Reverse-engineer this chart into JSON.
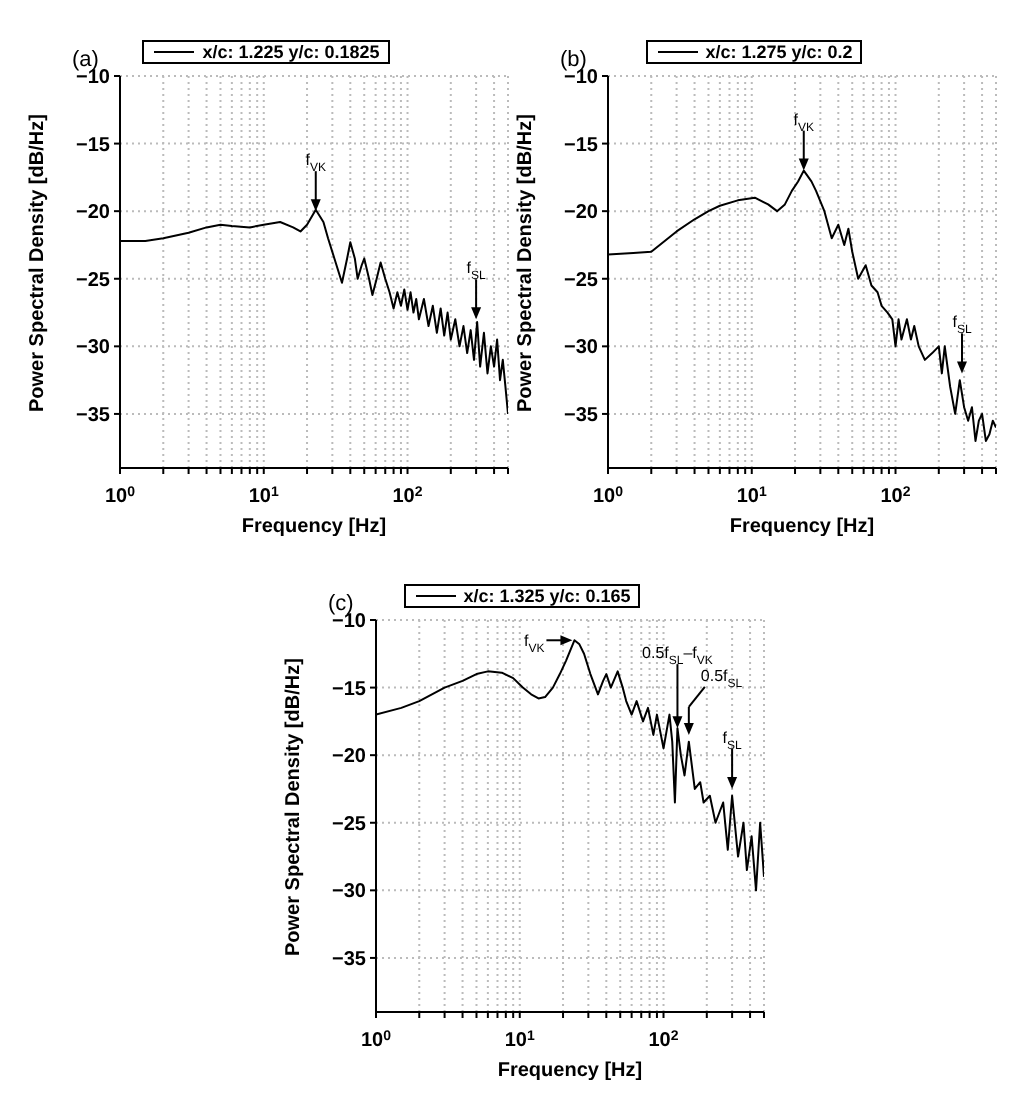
{
  "chart_data": [
    {
      "type": "line",
      "title": "(a)",
      "xlabel": "Frequency [Hz]",
      "ylabel": "Power Spectral Density [dB/Hz]",
      "log": "x",
      "grid": true,
      "legend": "top",
      "marker": "none",
      "line_style": "solid",
      "xlim": [
        1,
        500
      ],
      "ylim": [
        -39,
        -10
      ],
      "yticks": [
        -35,
        -30,
        -25,
        -20,
        -15,
        -10
      ],
      "xticks": [
        {
          "value": 1,
          "label": "10$^{0}$"
        },
        {
          "value": 2,
          "label": null
        },
        {
          "value": 3,
          "label": null
        },
        {
          "value": 4,
          "label": null
        },
        {
          "value": 5,
          "label": null
        },
        {
          "value": 6,
          "label": null
        },
        {
          "value": 7,
          "label": null
        },
        {
          "value": 8,
          "label": null
        },
        {
          "value": 9,
          "label": null
        },
        {
          "value": 10,
          "label": "10$^{1}$"
        },
        {
          "value": 20,
          "label": null
        },
        {
          "value": 30,
          "label": null
        },
        {
          "value": 40,
          "label": null
        },
        {
          "value": 50,
          "label": null
        },
        {
          "value": 60,
          "label": null
        },
        {
          "value": 70,
          "label": null
        },
        {
          "value": 80,
          "label": null
        },
        {
          "value": 90,
          "label": null
        },
        {
          "value": 100,
          "label": "10$^{2}$"
        },
        {
          "value": 200,
          "label": null
        },
        {
          "value": 300,
          "label": null
        },
        {
          "value": 400,
          "label": null
        },
        {
          "value": 500,
          "label": null
        }
      ],
      "series": [
        {
          "name": "x/c: 1.225 y/c: 0.1825",
          "color": "#000000",
          "x": [
            1,
            1.5,
            2,
            3,
            4,
            5,
            6,
            8,
            10,
            13,
            16,
            18,
            20,
            23,
            26,
            28,
            31,
            35,
            38,
            40,
            43,
            45,
            48,
            50,
            54,
            57,
            61,
            65,
            70,
            75,
            80,
            85,
            90,
            95,
            100,
            105,
            110,
            115,
            120,
            130,
            140,
            150,
            160,
            170,
            180,
            190,
            200,
            215,
            230,
            245,
            260,
            275,
            290,
            305,
            320,
            340,
            360,
            380,
            400,
            420,
            440,
            460,
            480,
            500
          ],
          "values": [
            -22.2,
            -22.2,
            -22,
            -21.6,
            -21.2,
            -21,
            -21.1,
            -21.2,
            -21,
            -20.8,
            -21.2,
            -21.5,
            -21,
            -19.9,
            -20.8,
            -22,
            -23.5,
            -25.3,
            -23.5,
            -22.3,
            -23.5,
            -25,
            -24,
            -23.5,
            -25,
            -26.2,
            -25,
            -23.8,
            -25,
            -26,
            -27.2,
            -26,
            -27,
            -25.8,
            -27.3,
            -26,
            -27.5,
            -26.5,
            -28,
            -26.5,
            -28.5,
            -27,
            -29,
            -27.2,
            -29.2,
            -27.5,
            -29.5,
            -28,
            -30,
            -28.5,
            -30.5,
            -28.8,
            -31,
            -28.2,
            -31.5,
            -29,
            -32,
            -30,
            -31.5,
            -29.5,
            -32.5,
            -31,
            -33,
            -35
          ]
        }
      ],
      "annotations": [
        {
          "text": "f$_{VK}$",
          "x": 23,
          "y": -20
        },
        {
          "text": "f$_{SL}$",
          "x": 300,
          "y": -28
        }
      ]
    },
    {
      "type": "line",
      "title": "(b)",
      "xlabel": "Frequency [Hz]",
      "ylabel": "Power Spectral Density [dB/Hz]",
      "log": "x",
      "grid": true,
      "legend": "top",
      "marker": "none",
      "line_style": "solid",
      "xlim": [
        1,
        500
      ],
      "ylim": [
        -39,
        -10
      ],
      "yticks": [
        -35,
        -30,
        -25,
        -20,
        -15,
        -10
      ],
      "xticks": [
        {
          "value": 1,
          "label": "10$^{0}$"
        },
        {
          "value": 2,
          "label": null
        },
        {
          "value": 3,
          "label": null
        },
        {
          "value": 4,
          "label": null
        },
        {
          "value": 5,
          "label": null
        },
        {
          "value": 6,
          "label": null
        },
        {
          "value": 7,
          "label": null
        },
        {
          "value": 8,
          "label": null
        },
        {
          "value": 9,
          "label": null
        },
        {
          "value": 10,
          "label": "10$^{1}$"
        },
        {
          "value": 20,
          "label": null
        },
        {
          "value": 30,
          "label": null
        },
        {
          "value": 40,
          "label": null
        },
        {
          "value": 50,
          "label": null
        },
        {
          "value": 60,
          "label": null
        },
        {
          "value": 70,
          "label": null
        },
        {
          "value": 80,
          "label": null
        },
        {
          "value": 90,
          "label": null
        },
        {
          "value": 100,
          "label": "10$^{2}$"
        },
        {
          "value": 200,
          "label": null
        },
        {
          "value": 300,
          "label": null
        },
        {
          "value": 400,
          "label": null
        },
        {
          "value": 500,
          "label": null
        }
      ],
      "series": [
        {
          "name": "x/c: 1.275 y/c: 0.2",
          "color": "#000000",
          "x": [
            1,
            1.5,
            2,
            3,
            4,
            5,
            6,
            8,
            10.5,
            13,
            15,
            17,
            19,
            21,
            23,
            26,
            28,
            32,
            36,
            40,
            44,
            47,
            50,
            55,
            62,
            68,
            75,
            80,
            88,
            95,
            100,
            105,
            110,
            120,
            128,
            135,
            145,
            160,
            180,
            200,
            210,
            220,
            240,
            260,
            280,
            300,
            320,
            340,
            360,
            380,
            400,
            425,
            450,
            475,
            500
          ],
          "values": [
            -23.2,
            -23.1,
            -23,
            -21.5,
            -20.6,
            -20,
            -19.6,
            -19.2,
            -19,
            -19.5,
            -20,
            -19.5,
            -18.5,
            -17.8,
            -17,
            -17.8,
            -18.5,
            -20,
            -22,
            -21,
            -22.5,
            -21.3,
            -23,
            -25,
            -24,
            -25.5,
            -26,
            -27,
            -27.5,
            -28,
            -30,
            -28,
            -29.5,
            -28,
            -29.5,
            -28.5,
            -30,
            -31,
            -30.5,
            -30,
            -32,
            -30,
            -33,
            -35,
            -32.5,
            -34.5,
            -35.5,
            -34.5,
            -37,
            -35.5,
            -35,
            -37,
            -36.5,
            -35.5,
            -36
          ]
        }
      ],
      "annotations": [
        {
          "text": "f$_{VK}$",
          "x": 23,
          "y": -17
        },
        {
          "text": "f$_{SL}$",
          "x": 290,
          "y": -32
        }
      ]
    },
    {
      "type": "line",
      "title": "(c)",
      "xlabel": "Frequency [Hz]",
      "ylabel": "Power Spectral Density [dB/Hz]",
      "log": "x",
      "grid": true,
      "legend": "top",
      "marker": "none",
      "line_style": "solid",
      "xlim": [
        1,
        500
      ],
      "ylim": [
        -39,
        -10
      ],
      "yticks": [
        -35,
        -30,
        -25,
        -20,
        -15,
        -10
      ],
      "xticks": [
        {
          "value": 1,
          "label": "10$^{0}$"
        },
        {
          "value": 2,
          "label": null
        },
        {
          "value": 3,
          "label": null
        },
        {
          "value": 4,
          "label": null
        },
        {
          "value": 5,
          "label": null
        },
        {
          "value": 6,
          "label": null
        },
        {
          "value": 7,
          "label": null
        },
        {
          "value": 8,
          "label": null
        },
        {
          "value": 9,
          "label": null
        },
        {
          "value": 10,
          "label": "10$^{1}$"
        },
        {
          "value": 20,
          "label": null
        },
        {
          "value": 30,
          "label": null
        },
        {
          "value": 40,
          "label": null
        },
        {
          "value": 50,
          "label": null
        },
        {
          "value": 60,
          "label": null
        },
        {
          "value": 70,
          "label": null
        },
        {
          "value": 80,
          "label": null
        },
        {
          "value": 90,
          "label": null
        },
        {
          "value": 100,
          "label": "10$^{2}$"
        },
        {
          "value": 200,
          "label": null
        },
        {
          "value": 300,
          "label": null
        },
        {
          "value": 400,
          "label": null
        },
        {
          "value": 500,
          "label": null
        }
      ],
      "series": [
        {
          "name": "x/c: 1.325 y/c: 0.165",
          "color": "#000000",
          "x": [
            1,
            1.5,
            2,
            3,
            4,
            5,
            6,
            7.5,
            9,
            10.5,
            12,
            13.5,
            15,
            17,
            19,
            21,
            24,
            26,
            28,
            31,
            35,
            38,
            40,
            43,
            48,
            52,
            55,
            60,
            65,
            72,
            78,
            85,
            90,
            100,
            110,
            115,
            120,
            125,
            132,
            140,
            150,
            165,
            180,
            190,
            210,
            230,
            260,
            280,
            300,
            330,
            360,
            380,
            410,
            440,
            470,
            500
          ],
          "values": [
            -17,
            -16.5,
            -16,
            -15,
            -14.5,
            -14,
            -13.8,
            -13.9,
            -14.3,
            -15,
            -15.5,
            -15.8,
            -15.7,
            -15,
            -14,
            -13,
            -11.5,
            -11.8,
            -12.5,
            -14,
            -15.5,
            -14.5,
            -14,
            -15,
            -13.8,
            -15,
            -16,
            -17,
            -16,
            -17.5,
            -16.5,
            -18.5,
            -17,
            -19.5,
            -17,
            -19,
            -23.5,
            -18,
            -20,
            -21.5,
            -19,
            -22.5,
            -22,
            -23.5,
            -23,
            -25,
            -23.5,
            -27,
            -23,
            -27.5,
            -25,
            -28.5,
            -26,
            -30,
            -25,
            -29
          ]
        }
      ],
      "annotations": [
        {
          "text": "f$_{VK}$",
          "x": 24,
          "y": -11.5
        },
        {
          "text": "0.5f$_{SL}$–f$_{VK}$",
          "x": 125,
          "y": -18
        },
        {
          "text": "0.5f$_{SL}$",
          "x": 150,
          "y": -18.5
        },
        {
          "text": "f$_{SL}$",
          "x": 300,
          "y": -22.5
        }
      ]
    }
  ]
}
